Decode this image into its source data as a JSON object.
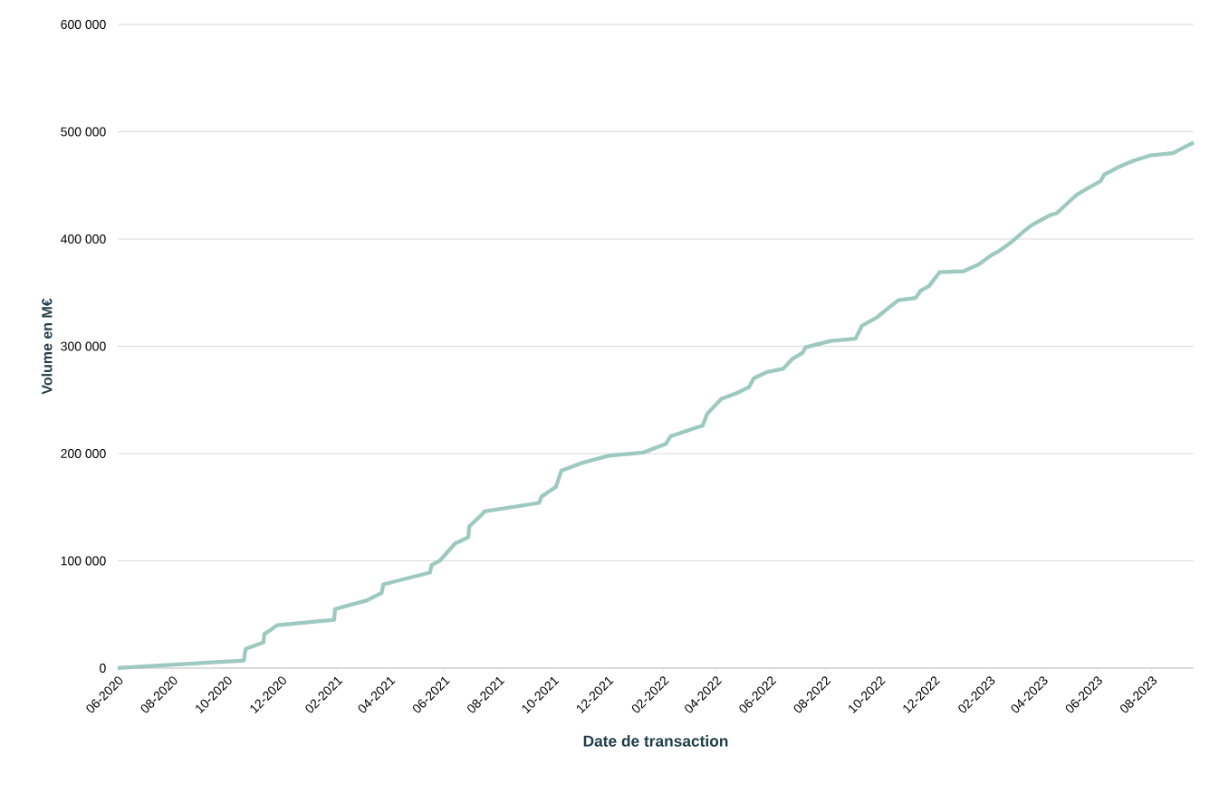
{
  "chart_data": {
    "type": "line",
    "xlabel": "Date de transaction",
    "ylabel": "Volume en M€",
    "color": "#9dc9c0",
    "grid": "y",
    "marker": "none",
    "line_style": "solid",
    "x": [
      "2020-06-01",
      "2020-10-20",
      "2020-10-22",
      "2020-11-11",
      "2020-11-12",
      "2020-11-18",
      "2020-11-26",
      "2021-01-29",
      "2021-01-30",
      "2021-03-06",
      "2021-03-23",
      "2021-03-25",
      "2021-05-16",
      "2021-05-18",
      "2021-05-27",
      "2021-06-13",
      "2021-06-28",
      "2021-06-29",
      "2021-07-13",
      "2021-07-16",
      "2021-09-15",
      "2021-09-18",
      "2021-10-04",
      "2021-10-10",
      "2021-11-01",
      "2021-12-02",
      "2022-01-10",
      "2022-02-04",
      "2022-02-09",
      "2022-03-02",
      "2022-03-17",
      "2022-03-22",
      "2022-04-07",
      "2022-04-26",
      "2022-05-08",
      "2022-05-13",
      "2022-05-28",
      "2022-06-15",
      "2022-06-25",
      "2022-07-07",
      "2022-07-10",
      "2022-08-07",
      "2022-09-04",
      "2022-09-11",
      "2022-09-28",
      "2022-10-11",
      "2022-10-22",
      "2022-11-10",
      "2022-11-16",
      "2022-11-25",
      "2022-12-07",
      "2023-01-03",
      "2023-01-19",
      "2023-02-03",
      "2023-02-10",
      "2023-02-25",
      "2023-03-11",
      "2023-03-20",
      "2023-04-09",
      "2023-04-17",
      "2023-05-01",
      "2023-05-09",
      "2023-05-21",
      "2023-06-05",
      "2023-06-09",
      "2023-06-25",
      "2023-07-12",
      "2023-07-31",
      "2023-08-25",
      "2023-09-03",
      "2023-09-17"
    ],
    "values": [
      0,
      7000,
      18000,
      24000,
      32000,
      35000,
      40000,
      45000,
      55000,
      63000,
      70000,
      78000,
      89000,
      96000,
      100000,
      116000,
      122000,
      132000,
      143000,
      146000,
      154000,
      160000,
      169000,
      184000,
      191000,
      198000,
      201000,
      209000,
      216000,
      222000,
      226000,
      237000,
      251000,
      257000,
      262000,
      270000,
      276000,
      279000,
      288000,
      294000,
      299000,
      305000,
      307000,
      319000,
      327000,
      336000,
      343000,
      345000,
      352000,
      356000,
      369000,
      370000,
      376000,
      385000,
      388000,
      397000,
      407000,
      413000,
      422000,
      424000,
      435000,
      441000,
      447000,
      454000,
      460000,
      467000,
      473000,
      478000,
      480000,
      484000,
      490000
    ],
    "xlim": [
      "2020-06-01",
      "2023-09-17"
    ],
    "xticks": [
      {
        "value": "2020-06",
        "label": "06-2020"
      },
      {
        "value": "2020-08",
        "label": "08-2020"
      },
      {
        "value": "2020-10",
        "label": "10-2020"
      },
      {
        "value": "2020-12",
        "label": "12-2020"
      },
      {
        "value": "2021-02",
        "label": "02-2021"
      },
      {
        "value": "2021-04",
        "label": "04-2021"
      },
      {
        "value": "2021-06",
        "label": "06-2021"
      },
      {
        "value": "2021-08",
        "label": "08-2021"
      },
      {
        "value": "2021-10",
        "label": "10-2021"
      },
      {
        "value": "2021-12",
        "label": "12-2021"
      },
      {
        "value": "2022-02",
        "label": "02-2022"
      },
      {
        "value": "2022-04",
        "label": "04-2022"
      },
      {
        "value": "2022-06",
        "label": "06-2022"
      },
      {
        "value": "2022-08",
        "label": "08-2022"
      },
      {
        "value": "2022-10",
        "label": "10-2022"
      },
      {
        "value": "2022-12",
        "label": "12-2022"
      },
      {
        "value": "2023-02",
        "label": "02-2023"
      },
      {
        "value": "2023-04",
        "label": "04-2023"
      },
      {
        "value": "2023-06",
        "label": "06-2023"
      },
      {
        "value": "2023-08",
        "label": "08-2023"
      }
    ],
    "ylim": [
      0,
      600000
    ],
    "yticks": [
      {
        "value": 0,
        "label": "0"
      },
      {
        "value": 100000,
        "label": "100 000"
      },
      {
        "value": 200000,
        "label": "200 000"
      },
      {
        "value": 300000,
        "label": "300 000"
      },
      {
        "value": 400000,
        "label": "400 000"
      },
      {
        "value": 500000,
        "label": "500 000"
      },
      {
        "value": 600000,
        "label": "600 000"
      }
    ]
  }
}
